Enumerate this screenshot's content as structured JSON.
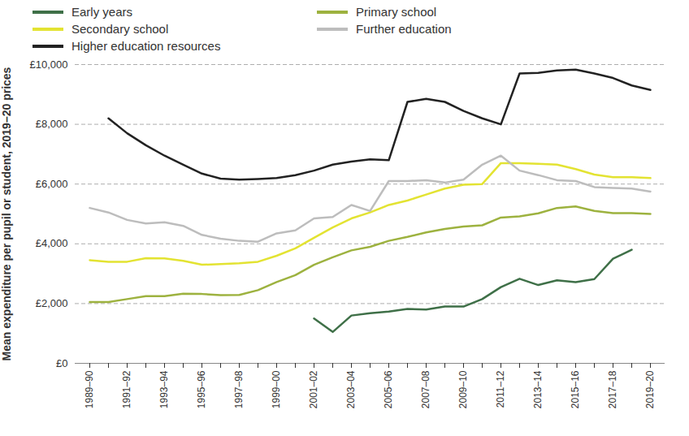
{
  "chart_data": {
    "type": "line",
    "y_label": "Mean expenditure per pupil or student, 2019–20 prices",
    "categories": [
      "1989–90",
      null,
      "1991–92",
      null,
      "1993–94",
      null,
      "1995–96",
      null,
      "1997–98",
      null,
      "1999–00",
      null,
      "2001–02",
      null,
      "2003–04",
      null,
      "2005–06",
      null,
      "2007–08",
      null,
      "2009–10",
      null,
      "2011–12",
      null,
      "2013–14",
      null,
      "2015–16",
      null,
      "2017–18",
      null,
      "2019–20"
    ],
    "series": [
      {
        "name": "Early years",
        "color": "#3f7048",
        "values": [
          null,
          null,
          null,
          null,
          null,
          null,
          null,
          null,
          null,
          null,
          null,
          null,
          1500,
          1050,
          1600,
          1680,
          1730,
          1820,
          1800,
          1900,
          1900,
          2150,
          2550,
          2830,
          2620,
          2780,
          2720,
          2820,
          3500,
          3800,
          null
        ]
      },
      {
        "name": "Primary school",
        "color": "#9db23f",
        "values": [
          2050,
          2050,
          2150,
          2250,
          2250,
          2330,
          2320,
          2280,
          2290,
          2450,
          2720,
          2950,
          3300,
          3550,
          3780,
          3900,
          4100,
          4230,
          4380,
          4500,
          4580,
          4620,
          4880,
          4920,
          5020,
          5200,
          5250,
          5100,
          5030,
          5030,
          5000
        ]
      },
      {
        "name": "Secondary school",
        "color": "#e3e332",
        "values": [
          3450,
          3400,
          3400,
          3520,
          3510,
          3430,
          3300,
          3320,
          3350,
          3400,
          3600,
          3850,
          4200,
          4550,
          4850,
          5050,
          5300,
          5450,
          5650,
          5850,
          5980,
          6000,
          6700,
          6700,
          6680,
          6650,
          6500,
          6320,
          6230,
          6230,
          6200
        ]
      },
      {
        "name": "Further education",
        "color": "#bdbdbd",
        "values": [
          5200,
          5050,
          4800,
          4680,
          4720,
          4600,
          4300,
          4170,
          4100,
          4070,
          4350,
          4450,
          4850,
          4900,
          5300,
          5100,
          6100,
          6100,
          6130,
          6050,
          6150,
          6650,
          6950,
          6450,
          6300,
          6130,
          6100,
          5900,
          5870,
          5850,
          5750
        ]
      },
      {
        "name": "Higher education resources",
        "color": "#222222",
        "values": [
          null,
          8200,
          7700,
          7300,
          6950,
          6650,
          6350,
          6180,
          6150,
          6170,
          6200,
          6300,
          6450,
          6650,
          6750,
          6830,
          6800,
          8750,
          8850,
          8750,
          8450,
          8200,
          8000,
          9700,
          9720,
          9800,
          9830,
          9700,
          9550,
          9300,
          9150
        ]
      }
    ],
    "ylim": [
      0,
      10000
    ],
    "yticks": [
      {
        "value": 0,
        "label": "£0"
      },
      {
        "value": 2000,
        "label": "£2,000"
      },
      {
        "value": 4000,
        "label": "£4,000"
      },
      {
        "value": 6000,
        "label": "£6,000"
      },
      {
        "value": 8000,
        "label": "£8,000"
      },
      {
        "value": 10000,
        "label": "£10,000"
      }
    ],
    "grid": true,
    "legend": "top"
  }
}
